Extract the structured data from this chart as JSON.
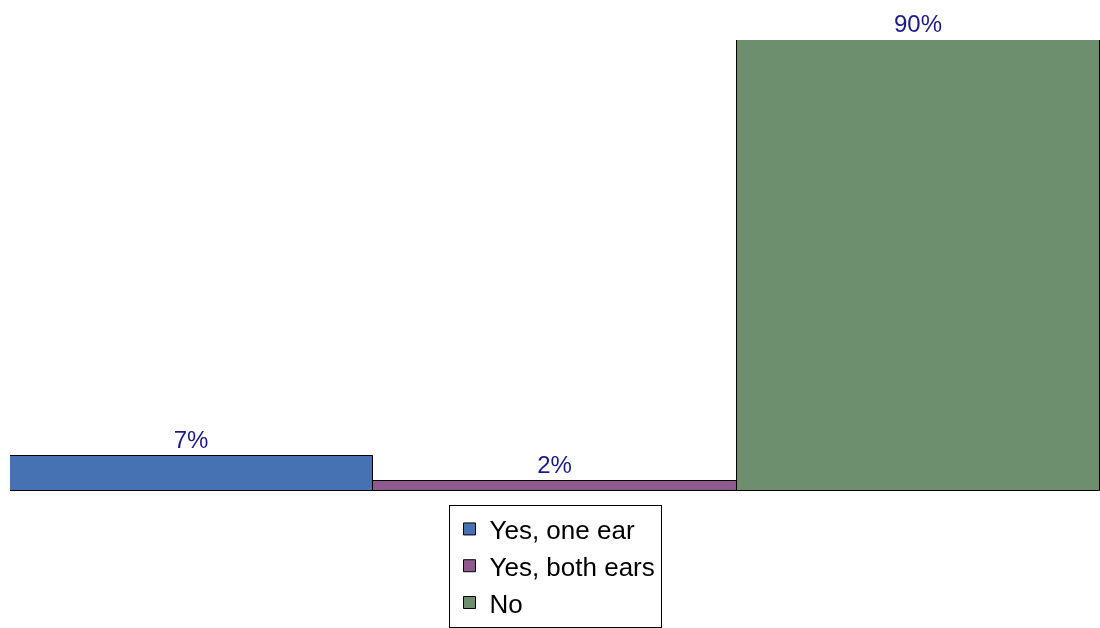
{
  "chart_data": {
    "type": "bar",
    "categories": [
      null,
      null,
      null
    ],
    "series": [
      {
        "name": "Yes, one ear",
        "color": "#4672b4",
        "values": [
          7,
          null,
          null
        ],
        "value_labels": [
          "7%",
          null,
          null
        ]
      },
      {
        "name": "Yes, both ears",
        "color": "#8f5b8f",
        "values": [
          null,
          2,
          null
        ],
        "value_labels": [
          null,
          "2%",
          null
        ]
      },
      {
        "name": "No",
        "color": "#6e8f6e",
        "values": [
          null,
          null,
          90
        ],
        "value_labels": [
          null,
          null,
          "90%"
        ]
      }
    ],
    "stacked": true,
    "legend": "bottom",
    "grid": false,
    "tick_labels": false
  }
}
